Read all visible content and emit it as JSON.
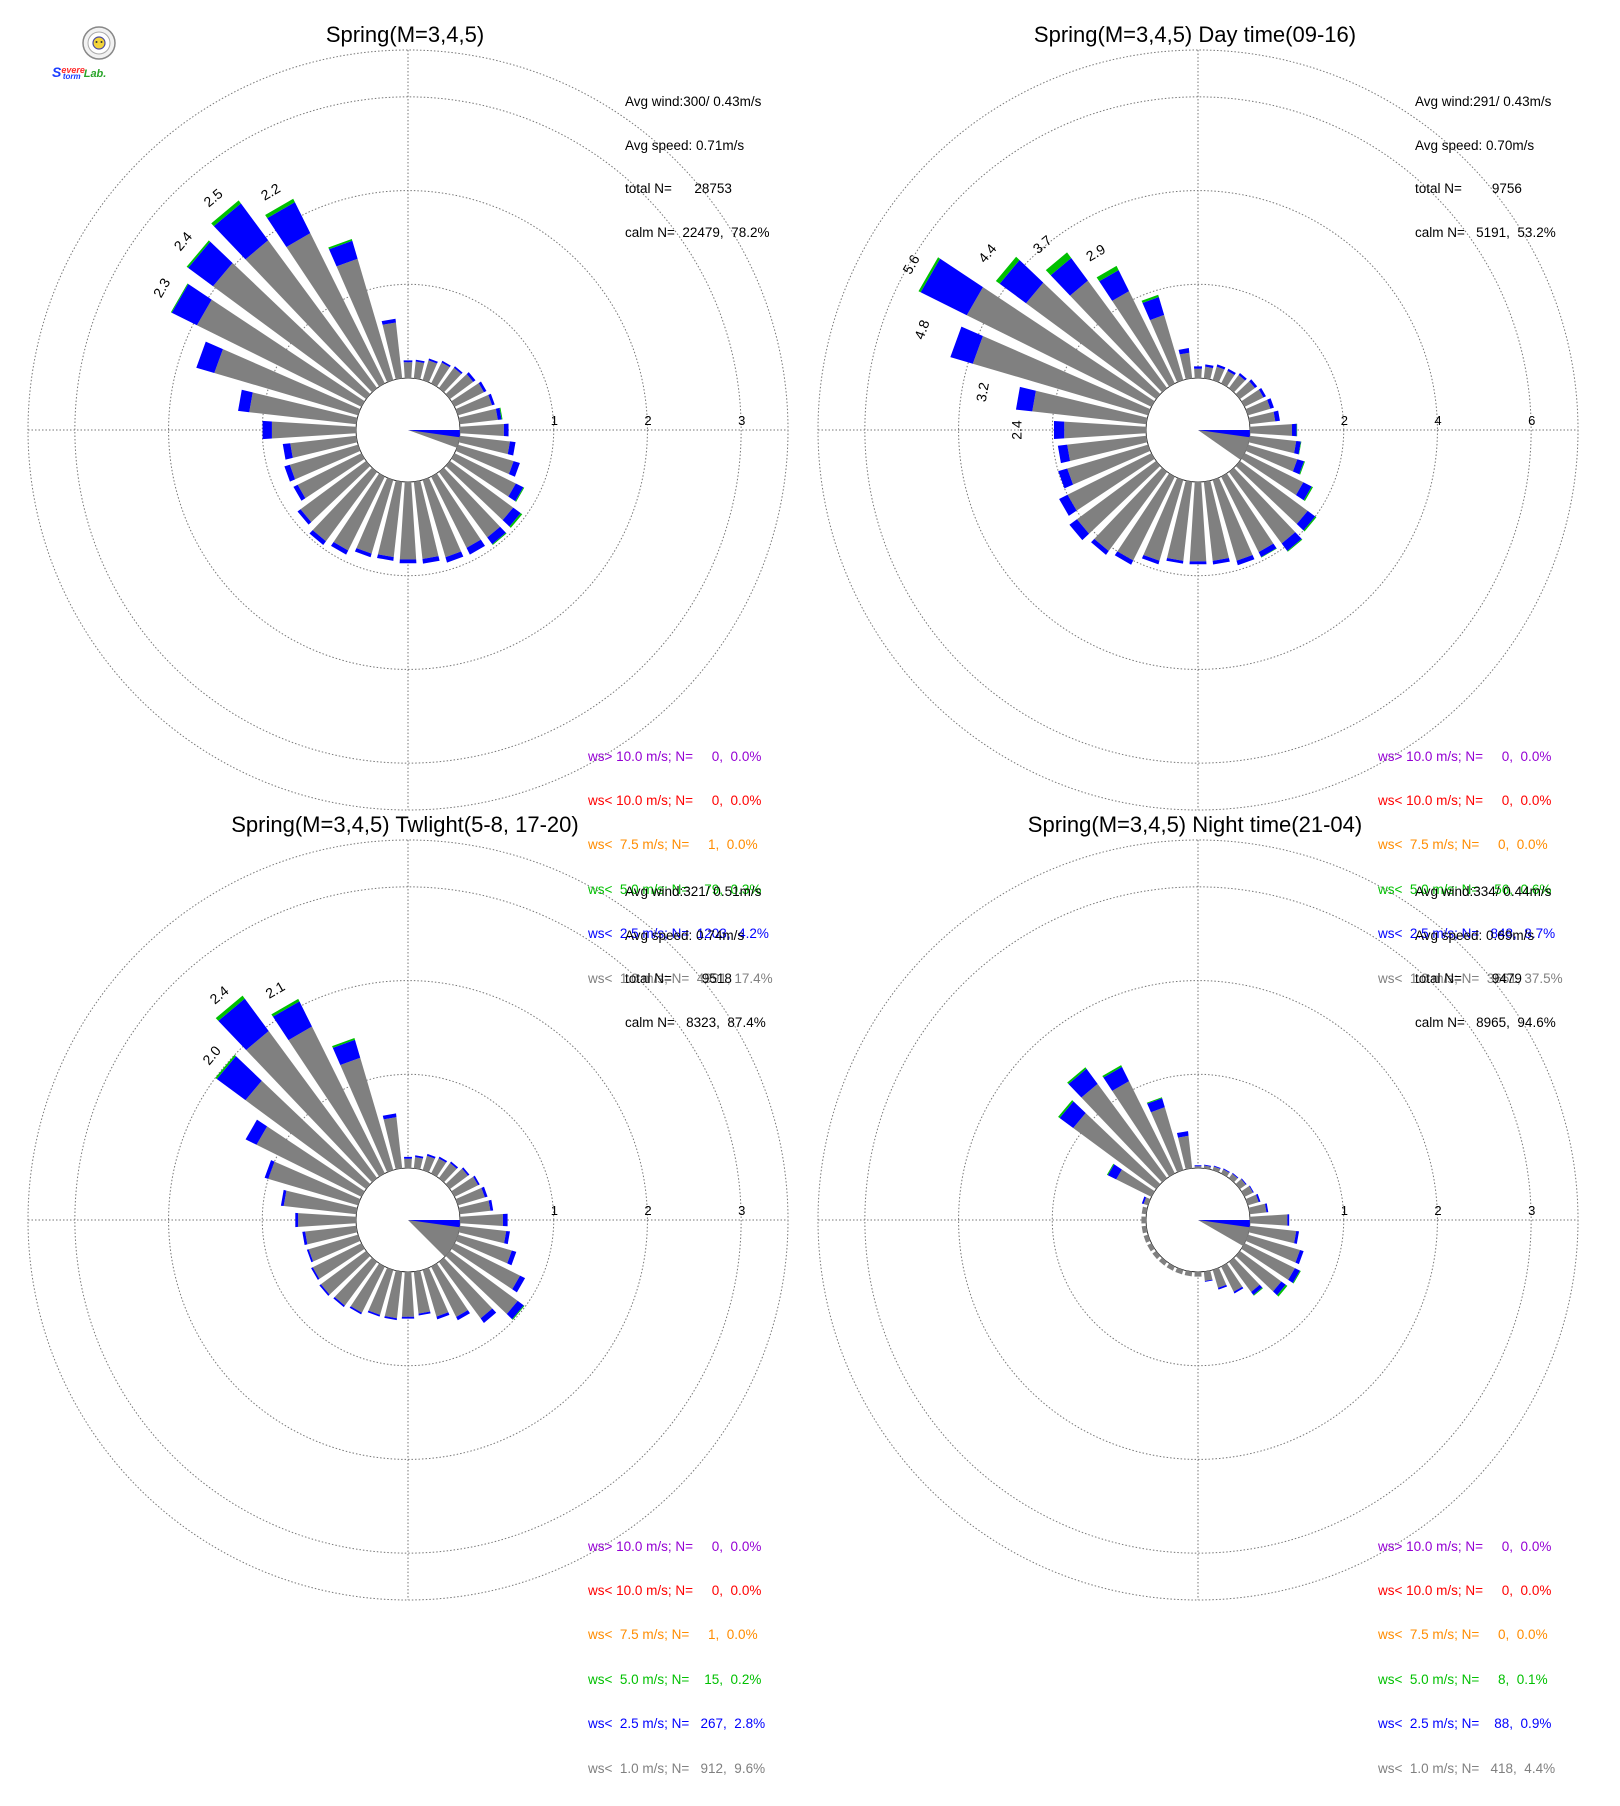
{
  "logo": {
    "lines": [
      "S",
      "evere",
      "S",
      "torm",
      "Lab."
    ]
  },
  "colors": {
    "gt10": "#9400d3",
    "lt10": "#ff0000",
    "lt7_5": "#ff8c00",
    "lt5": "#00c000",
    "lt2_5": "#0000ff",
    "lt1": "#808080",
    "grid": "#777777"
  },
  "chart_data": [
    {
      "type": "polar-bar",
      "title": "Spring(M=3,4,5)",
      "stats": {
        "avg_wind": "Avg wind:300/ 0.43m/s",
        "avg_speed": "Avg speed: 0.71m/s",
        "total": "total N=      28753",
        "calm": "calm N=  22479,  78.2%"
      },
      "rings": [
        1,
        2,
        3
      ],
      "ring_labels": [
        "1",
        "2",
        "3"
      ],
      "rmax": 3.5,
      "peak_labels": [
        {
          "dir": 300,
          "text": "2.3",
          "value": 2.3
        },
        {
          "dir": 310,
          "text": "2.4",
          "value": 2.4
        },
        {
          "dir": 320,
          "text": "2.5",
          "value": 2.5
        },
        {
          "dir": 330,
          "text": "2.2",
          "value": 2.2
        }
      ],
      "dir_bins": [
        0,
        10,
        20,
        30,
        40,
        50,
        60,
        70,
        80,
        90,
        100,
        110,
        120,
        130,
        140,
        150,
        160,
        170,
        180,
        190,
        200,
        210,
        220,
        230,
        240,
        250,
        260,
        270,
        280,
        290,
        300,
        310,
        320,
        330,
        340,
        350
      ],
      "series": [
        {
          "name": "ws<  1.0 m/s",
          "values": [
            0.17,
            0.18,
            0.22,
            0.25,
            0.27,
            0.31,
            0.35,
            0.38,
            0.41,
            0.47,
            0.54,
            0.62,
            0.73,
            0.84,
            0.87,
            0.85,
            0.86,
            0.83,
            0.83,
            0.81,
            0.82,
            0.88,
            0.92,
            0.87,
            0.76,
            0.76,
            0.71,
            0.9,
            1.15,
            1.6,
            1.96,
            2.03,
            1.96,
            1.79,
            1.35,
            0.6
          ]
        },
        {
          "name": "ws<  2.5 m/s",
          "values": [
            0.02,
            0.02,
            0.02,
            0.02,
            0.02,
            0.03,
            0.03,
            0.03,
            0.04,
            0.05,
            0.06,
            0.07,
            0.09,
            0.1,
            0.09,
            0.08,
            0.06,
            0.05,
            0.04,
            0.04,
            0.04,
            0.05,
            0.05,
            0.04,
            0.05,
            0.06,
            0.08,
            0.1,
            0.12,
            0.2,
            0.3,
            0.33,
            0.49,
            0.37,
            0.2,
            0.04
          ]
        },
        {
          "name": "ws<  5.0 m/s",
          "values": [
            0,
            0,
            0,
            0,
            0,
            0,
            0,
            0,
            0.01,
            0,
            0,
            0,
            0.01,
            0.02,
            0.01,
            0,
            0,
            0,
            0,
            0,
            0,
            0,
            0,
            0,
            0,
            0,
            0,
            0,
            0,
            0,
            0.01,
            0.02,
            0.04,
            0.04,
            0.02,
            0
          ]
        },
        {
          "name": "ws<  7.5 m/s",
          "values": [
            0,
            0,
            0,
            0,
            0,
            0,
            0,
            0,
            0,
            0,
            0,
            0,
            0,
            0,
            0,
            0,
            0,
            0,
            0,
            0,
            0,
            0,
            0,
            0,
            0,
            0,
            0,
            0,
            0,
            0,
            0,
            0,
            0,
            0,
            0,
            0
          ]
        }
      ],
      "calm_sector": {
        "from": 90,
        "to": 100,
        "value": 0.5
      },
      "legend": [
        {
          "key": "gt10",
          "text": "ws> 10.0 m/s; N=     0,  0.0%"
        },
        {
          "key": "lt10",
          "text": "ws< 10.0 m/s; N=     0,  0.0%"
        },
        {
          "key": "lt7_5",
          "text": "ws<  7.5 m/s; N=     1,  0.0%"
        },
        {
          "key": "lt5",
          "text": "ws<  5.0 m/s; N=    79,  0.3%"
        },
        {
          "key": "lt2_5",
          "text": "ws<  2.5 m/s; N=  1203,  4.2%"
        },
        {
          "key": "lt1",
          "text": "ws<  1.0 m/s; N=  4991, 17.4%"
        }
      ]
    },
    {
      "type": "polar-bar",
      "title": "Spring(M=3,4,5) Day time(09-16)",
      "stats": {
        "avg_wind": "Avg wind:291/ 0.43m/s",
        "avg_speed": "Avg speed: 0.70m/s",
        "total": "total N=        9756",
        "calm": "calm N=   5191,  53.2%"
      },
      "rings": [
        2,
        4,
        6
      ],
      "ring_labels": [
        "2",
        "4",
        "6"
      ],
      "rmax": 7.0,
      "peak_labels": [
        {
          "dir": 270,
          "text": "2.4",
          "value": 2.4
        },
        {
          "dir": 280,
          "text": "3.2",
          "value": 3.2
        },
        {
          "dir": 290,
          "text": "4.8",
          "value": 4.8
        },
        {
          "dir": 300,
          "text": "5.6",
          "value": 5.6
        },
        {
          "dir": 310,
          "text": "4.4",
          "value": 4.4
        },
        {
          "dir": 320,
          "text": "3.7",
          "value": 3.7
        },
        {
          "dir": 330,
          "text": "2.9",
          "value": 2.9
        }
      ],
      "dir_bins": [
        0,
        10,
        20,
        30,
        40,
        50,
        60,
        70,
        80,
        90,
        100,
        110,
        120,
        130,
        140,
        150,
        160,
        170,
        180,
        190,
        200,
        210,
        220,
        230,
        240,
        250,
        260,
        270,
        280,
        290,
        300,
        310,
        320,
        330,
        340,
        350
      ],
      "series": [
        {
          "name": "ws<  1.0 m/s",
          "values": [
            0.2,
            0.25,
            0.3,
            0.3,
            0.35,
            0.4,
            0.45,
            0.5,
            0.55,
            0.9,
            1.0,
            1.1,
            1.4,
            1.8,
            1.9,
            1.8,
            1.8,
            1.7,
            1.7,
            1.7,
            1.8,
            2.0,
            2.1,
            2.1,
            2.0,
            1.8,
            1.7,
            1.75,
            2.45,
            3.9,
            4.4,
            3.45,
            2.85,
            2.2,
            1.45,
            0.55
          ]
        },
        {
          "name": "ws<  2.5 m/s",
          "values": [
            0.05,
            0.05,
            0.05,
            0.05,
            0.05,
            0.06,
            0.06,
            0.08,
            0.1,
            0.1,
            0.1,
            0.15,
            0.2,
            0.2,
            0.2,
            0.12,
            0.1,
            0.08,
            0.06,
            0.06,
            0.08,
            0.1,
            0.1,
            0.2,
            0.2,
            0.2,
            0.2,
            0.22,
            0.35,
            0.5,
            1.1,
            0.7,
            0.6,
            0.5,
            0.4,
            0.1
          ]
        },
        {
          "name": "ws<  5.0 m/s",
          "values": [
            0,
            0,
            0,
            0,
            0,
            0,
            0,
            0,
            0,
            0.01,
            0.01,
            0.02,
            0.03,
            0.03,
            0.02,
            0.01,
            0,
            0,
            0,
            0,
            0,
            0,
            0,
            0,
            0,
            0,
            0,
            0,
            0,
            0,
            0.05,
            0.1,
            0.15,
            0.1,
            0.05,
            0
          ]
        },
        {
          "name": "ws<  7.5 m/s",
          "values": [
            0,
            0,
            0,
            0,
            0,
            0,
            0,
            0,
            0,
            0,
            0,
            0,
            0,
            0,
            0,
            0,
            0,
            0,
            0,
            0,
            0,
            0,
            0,
            0,
            0,
            0,
            0,
            0,
            0,
            0,
            0,
            0,
            0,
            0,
            0,
            0
          ]
        }
      ],
      "calm_sector": {
        "from": 90,
        "to": 115,
        "value": 1.6
      },
      "legend": [
        {
          "key": "gt10",
          "text": "ws> 10.0 m/s; N=     0,  0.0%"
        },
        {
          "key": "lt10",
          "text": "ws< 10.0 m/s; N=     0,  0.0%"
        },
        {
          "key": "lt7_5",
          "text": "ws<  7.5 m/s; N=     0,  0.0%"
        },
        {
          "key": "lt5",
          "text": "ws<  5.0 m/s; N=    56,  0.6%"
        },
        {
          "key": "lt2_5",
          "text": "ws<  2.5 m/s; N=   848,  8.7%"
        },
        {
          "key": "lt1",
          "text": "ws<  1.0 m/s; N=  3661, 37.5%"
        }
      ]
    },
    {
      "type": "polar-bar",
      "title": "Spring(M=3,4,5) Twlight(5-8, 17-20)",
      "stats": {
        "avg_wind": "Avg wind:321/ 0.51m/s",
        "avg_speed": "Avg speed: 0.74m/s",
        "total": "total N=        9518",
        "calm": "calm N=   8323,  87.4%"
      },
      "rings": [
        1,
        2,
        3
      ],
      "ring_labels": [
        "1",
        "2",
        "3"
      ],
      "rmax": 3.5,
      "peak_labels": [
        {
          "dir": 310,
          "text": "2.0",
          "value": 2.0
        },
        {
          "dir": 320,
          "text": "2.4",
          "value": 2.4
        },
        {
          "dir": 330,
          "text": "2.1",
          "value": 2.1
        }
      ],
      "dir_bins": [
        0,
        10,
        20,
        30,
        40,
        50,
        60,
        70,
        80,
        90,
        100,
        110,
        120,
        130,
        140,
        150,
        160,
        170,
        180,
        190,
        200,
        210,
        220,
        230,
        240,
        250,
        260,
        270,
        280,
        290,
        300,
        310,
        320,
        330,
        340,
        350
      ],
      "series": [
        {
          "name": "ws<  1.0 m/s",
          "values": [
            0.1,
            0.12,
            0.16,
            0.18,
            0.2,
            0.24,
            0.28,
            0.3,
            0.33,
            0.46,
            0.5,
            0.6,
            0.78,
            0.9,
            0.75,
            0.6,
            0.52,
            0.45,
            0.48,
            0.5,
            0.5,
            0.55,
            0.58,
            0.6,
            0.58,
            0.55,
            0.55,
            0.62,
            0.78,
            1.0,
            1.25,
            1.6,
            1.95,
            1.75,
            1.25,
            0.55
          ]
        },
        {
          "name": "ws<  2.5 m/s",
          "values": [
            0.02,
            0.02,
            0.02,
            0.02,
            0.02,
            0.02,
            0.02,
            0.03,
            0.03,
            0.05,
            0.04,
            0.05,
            0.06,
            0.08,
            0.06,
            0.04,
            0.03,
            0.02,
            0.02,
            0.02,
            0.02,
            0.02,
            0.02,
            0.02,
            0.02,
            0.02,
            0.03,
            0.03,
            0.03,
            0.04,
            0.13,
            0.38,
            0.43,
            0.3,
            0.2,
            0.04
          ]
        },
        {
          "name": "ws<  5.0 m/s",
          "values": [
            0,
            0,
            0,
            0,
            0,
            0,
            0,
            0,
            0,
            0,
            0,
            0,
            0,
            0.01,
            0,
            0,
            0,
            0,
            0,
            0,
            0,
            0,
            0,
            0,
            0,
            0,
            0,
            0,
            0,
            0,
            0,
            0.02,
            0.04,
            0.03,
            0.02,
            0
          ]
        },
        {
          "name": "ws<  7.5 m/s",
          "values": [
            0,
            0,
            0,
            0,
            0,
            0,
            0,
            0,
            0,
            0,
            0,
            0,
            0,
            0,
            0,
            0,
            0,
            0,
            0,
            0,
            0,
            0,
            0,
            0,
            0,
            0,
            0,
            0,
            0,
            0,
            0,
            0,
            0,
            0,
            0,
            0
          ]
        }
      ],
      "calm_sector": {
        "from": 90,
        "to": 125,
        "value": 0.5
      },
      "legend": [
        {
          "key": "gt10",
          "text": "ws> 10.0 m/s; N=     0,  0.0%"
        },
        {
          "key": "lt10",
          "text": "ws< 10.0 m/s; N=     0,  0.0%"
        },
        {
          "key": "lt7_5",
          "text": "ws<  7.5 m/s; N=     1,  0.0%"
        },
        {
          "key": "lt5",
          "text": "ws<  5.0 m/s; N=    15,  0.2%"
        },
        {
          "key": "lt2_5",
          "text": "ws<  2.5 m/s; N=   267,  2.8%"
        },
        {
          "key": "lt1",
          "text": "ws<  1.0 m/s; N=   912,  9.6%"
        }
      ]
    },
    {
      "type": "polar-bar",
      "title": "Spring(M=3,4,5) Night time(21-04)",
      "stats": {
        "avg_wind": "Avg wind:334/ 0.44m/s",
        "avg_speed": "Avg speed: 0.69m/s",
        "total": "total N=        9479",
        "calm": "calm N=   8965,  94.6%"
      },
      "rings": [
        1,
        2,
        3
      ],
      "ring_labels": [
        "1",
        "2",
        "3"
      ],
      "rmax": 3.5,
      "peak_labels": [],
      "dir_bins": [
        0,
        10,
        20,
        30,
        40,
        50,
        60,
        70,
        80,
        90,
        100,
        110,
        120,
        130,
        140,
        150,
        160,
        170,
        180,
        190,
        200,
        210,
        220,
        230,
        240,
        250,
        260,
        270,
        280,
        290,
        300,
        310,
        320,
        330,
        340,
        350
      ],
      "series": [
        {
          "name": "ws<  1.0 m/s",
          "values": [
            0.02,
            0.03,
            0.04,
            0.05,
            0.06,
            0.08,
            0.1,
            0.12,
            0.18,
            0.4,
            0.5,
            0.58,
            0.6,
            0.55,
            0.4,
            0.3,
            0.2,
            0.1,
            0.05,
            0.05,
            0.05,
            0.05,
            0.05,
            0.05,
            0.05,
            0.05,
            0.05,
            0.05,
            0.05,
            0.05,
            0.42,
            1.1,
            1.25,
            1.1,
            0.7,
            0.35
          ]
        },
        {
          "name": "ws<  2.5 m/s",
          "values": [
            0.01,
            0.01,
            0.01,
            0.01,
            0.01,
            0.01,
            0.01,
            0.02,
            0.02,
            0.02,
            0.03,
            0.04,
            0.06,
            0.06,
            0.04,
            0.02,
            0.02,
            0.01,
            0,
            0,
            0,
            0,
            0,
            0,
            0,
            0,
            0,
            0,
            0,
            0.02,
            0.1,
            0.18,
            0.2,
            0.17,
            0.1,
            0.05
          ]
        },
        {
          "name": "ws<  5.0 m/s",
          "values": [
            0,
            0,
            0,
            0,
            0,
            0,
            0,
            0,
            0,
            0,
            0,
            0,
            0.01,
            0.02,
            0.01,
            0,
            0,
            0,
            0,
            0,
            0,
            0,
            0,
            0,
            0,
            0,
            0,
            0,
            0,
            0,
            0.01,
            0.02,
            0.02,
            0.02,
            0.01,
            0
          ]
        },
        {
          "name": "ws<  7.5 m/s",
          "values": [
            0,
            0,
            0,
            0,
            0,
            0,
            0,
            0,
            0,
            0,
            0,
            0,
            0,
            0,
            0,
            0,
            0,
            0,
            0,
            0,
            0,
            0,
            0,
            0,
            0,
            0,
            0,
            0,
            0,
            0,
            0,
            0,
            0,
            0,
            0,
            0
          ]
        }
      ],
      "calm_sector": {
        "from": 90,
        "to": 110,
        "value": 0.5
      },
      "legend": [
        {
          "key": "gt10",
          "text": "ws> 10.0 m/s; N=     0,  0.0%"
        },
        {
          "key": "lt10",
          "text": "ws< 10.0 m/s; N=     0,  0.0%"
        },
        {
          "key": "lt7_5",
          "text": "ws<  7.5 m/s; N=     0,  0.0%"
        },
        {
          "key": "lt5",
          "text": "ws<  5.0 m/s; N=     8,  0.1%"
        },
        {
          "key": "lt2_5",
          "text": "ws<  2.5 m/s; N=    88,  0.9%"
        },
        {
          "key": "lt1",
          "text": "ws<  1.0 m/s; N=   418,  4.4%"
        }
      ]
    }
  ]
}
